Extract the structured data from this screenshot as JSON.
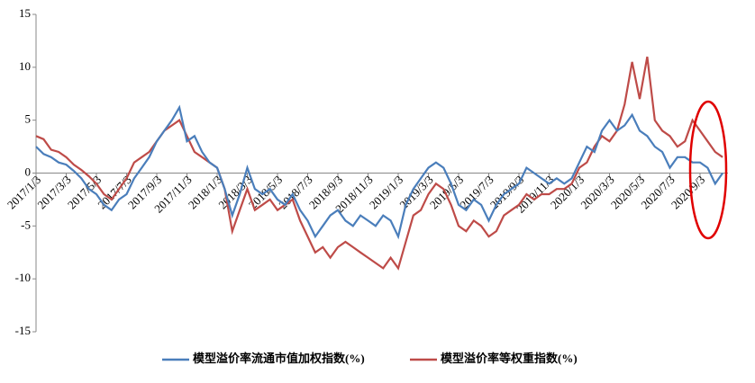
{
  "chart_data": {
    "type": "line",
    "categories": [
      "2017/1/3",
      null,
      null,
      null,
      "2017/3/3",
      null,
      null,
      null,
      "2017/5/3",
      null,
      null,
      null,
      "2017/7/3",
      null,
      null,
      null,
      "2017/9/3",
      null,
      null,
      null,
      "2017/11/3",
      null,
      null,
      null,
      "2018/1/3",
      null,
      null,
      null,
      "2018/3/3",
      null,
      null,
      null,
      "2018/5/3",
      null,
      null,
      null,
      "2018/7/3",
      null,
      null,
      null,
      "2018/9/3",
      null,
      null,
      null,
      "2018/11/3",
      null,
      null,
      null,
      "2019/1/3",
      null,
      null,
      null,
      "2019/3/3",
      null,
      null,
      null,
      "2019/5/3",
      null,
      null,
      null,
      "2019/7/3",
      null,
      null,
      null,
      "2019/9/3",
      null,
      null,
      null,
      "2019/11/3",
      null,
      null,
      null,
      "2020/1/3",
      null,
      null,
      null,
      "2020/3/3",
      null,
      null,
      null,
      "2020/5/3",
      null,
      null,
      null,
      "2020/7/3",
      null,
      null,
      null,
      "2020/9/3",
      null,
      null,
      null
    ],
    "series": [
      {
        "name": "模型溢价率流通市值加权指数(%)",
        "color": "#4a7ebb",
        "values": [
          2.5,
          1.8,
          1.5,
          1.0,
          0.8,
          0.2,
          -0.5,
          -1.5,
          -2.0,
          -3.0,
          -3.5,
          -2.5,
          -2.0,
          -0.5,
          0.5,
          1.5,
          3.0,
          4.0,
          5.0,
          6.2,
          3.0,
          3.5,
          2.0,
          1.0,
          0.5,
          -1.5,
          -4.0,
          -2.0,
          0.5,
          -1.5,
          -2.0,
          -1.5,
          -2.5,
          -3.0,
          -2.0,
          -3.5,
          -4.5,
          -6.0,
          -5.0,
          -4.0,
          -3.5,
          -4.5,
          -5.0,
          -4.0,
          -4.5,
          -5.0,
          -4.0,
          -4.5,
          -6.0,
          -3.0,
          -1.5,
          -0.5,
          0.5,
          1.0,
          0.5,
          -1.0,
          -3.0,
          -3.5,
          -2.5,
          -3.0,
          -4.5,
          -3.0,
          -2.0,
          -1.5,
          -1.0,
          0.5,
          0.0,
          -0.5,
          -1.0,
          -0.5,
          -1.0,
          -0.5,
          1.0,
          2.5,
          2.0,
          4.0,
          5.0,
          4.0,
          4.5,
          5.5,
          4.0,
          3.5,
          2.5,
          2.0,
          0.5,
          1.5,
          1.5,
          1.0,
          1.0,
          0.5,
          -1.0,
          0.0
        ]
      },
      {
        "name": "模型溢价率等权重指数(%)",
        "color": "#be4b48",
        "values": [
          3.5,
          3.2,
          2.2,
          2.0,
          1.5,
          0.8,
          0.3,
          -0.3,
          -1.0,
          -2.0,
          -2.5,
          -1.5,
          -0.5,
          1.0,
          1.5,
          2.0,
          3.0,
          4.0,
          4.5,
          5.0,
          3.5,
          2.0,
          1.5,
          1.0,
          0.5,
          -1.5,
          -5.5,
          -3.5,
          -1.5,
          -3.5,
          -3.0,
          -2.5,
          -3.5,
          -3.0,
          -2.5,
          -4.5,
          -6.0,
          -7.5,
          -7.0,
          -8.0,
          -7.0,
          -6.5,
          -7.0,
          -7.5,
          -8.0,
          -8.5,
          -9.0,
          -8.0,
          -9.0,
          -6.5,
          -4.0,
          -3.5,
          -2.0,
          -1.0,
          -1.5,
          -3.0,
          -5.0,
          -5.5,
          -4.5,
          -5.0,
          -6.0,
          -5.5,
          -4.0,
          -3.5,
          -3.0,
          -2.0,
          -2.5,
          -2.0,
          -2.0,
          -1.5,
          -1.5,
          -1.0,
          0.5,
          1.0,
          2.5,
          3.5,
          3.0,
          4.0,
          6.5,
          10.5,
          7.0,
          11.0,
          5.0,
          4.0,
          3.5,
          2.5,
          3.0,
          5.0,
          4.0,
          3.0,
          2.0,
          1.5
        ]
      }
    ],
    "ylim": [
      -15,
      15
    ],
    "yticks": [
      -15,
      -10,
      -5,
      0,
      5,
      10,
      15
    ],
    "grid": false,
    "legend": "bottom"
  }
}
